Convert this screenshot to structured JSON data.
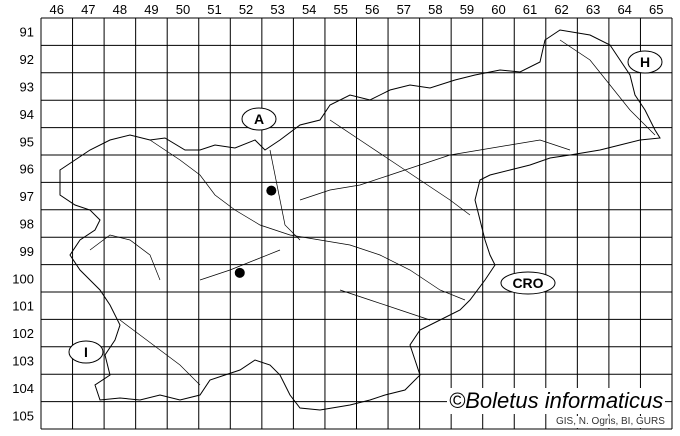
{
  "map": {
    "column_labels": [
      "46",
      "47",
      "48",
      "49",
      "50",
      "51",
      "52",
      "53",
      "54",
      "55",
      "56",
      "57",
      "58",
      "59",
      "60",
      "61",
      "62",
      "63",
      "64",
      "65"
    ],
    "row_labels": [
      "91",
      "92",
      "93",
      "94",
      "95",
      "96",
      "97",
      "98",
      "99",
      "100",
      "101",
      "102",
      "103",
      "104",
      "105"
    ],
    "records": [
      {
        "column": "53",
        "row": "97"
      },
      {
        "column": "52",
        "row": "100"
      }
    ],
    "country_labels": [
      {
        "id": "austria",
        "text": "A"
      },
      {
        "id": "hungary",
        "text": "H"
      },
      {
        "id": "croatia",
        "text": "CRO"
      },
      {
        "id": "italy",
        "text": "I"
      }
    ],
    "colors": {
      "grid": "#000000",
      "border": "#000000",
      "record_dot": "#000000",
      "background": "#ffffff"
    }
  },
  "watermark": "©Boletus informaticus",
  "credit": "GIS, N. Ogris, BI, GURS"
}
